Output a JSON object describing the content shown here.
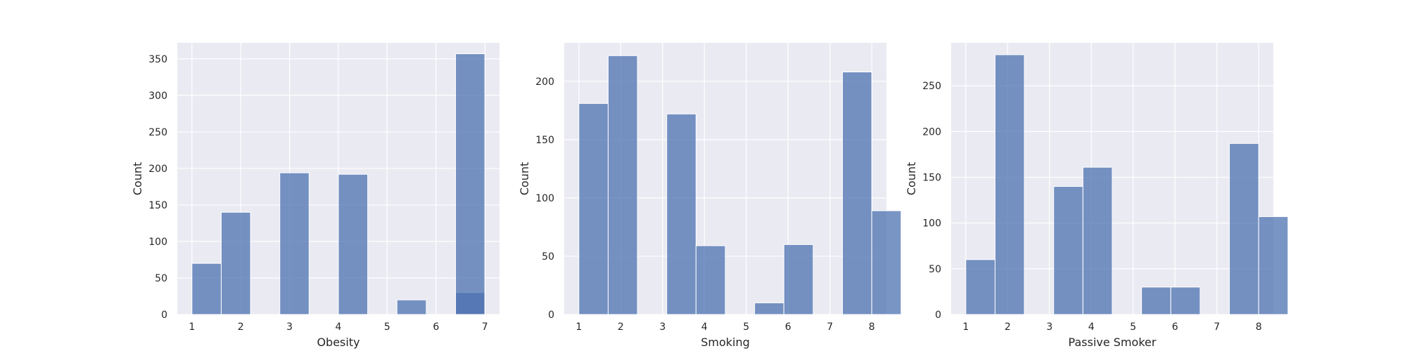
{
  "colors": {
    "background": "#ffffff",
    "plot_background": "#eaeaf2",
    "grid": "#ffffff",
    "bar_fill": "#4c72b0",
    "bar_edge": "#ffffff",
    "text": "#262626"
  },
  "chart_data": [
    {
      "type": "bar",
      "subtype": "histogram",
      "title": "",
      "xlabel": "Obesity",
      "ylabel": "Count",
      "xlim": [
        0.7,
        7.3
      ],
      "ylim": [
        0,
        372
      ],
      "xticks": [
        1,
        2,
        3,
        4,
        5,
        6,
        7
      ],
      "yticks": [
        0,
        50,
        100,
        150,
        200,
        250,
        300,
        350
      ],
      "bin_width": 0.6,
      "bins": [
        {
          "start": 1.0,
          "value": 70
        },
        {
          "start": 1.6,
          "value": 140
        },
        {
          "start": 2.2,
          "value": 0
        },
        {
          "start": 2.8,
          "value": 194
        },
        {
          "start": 3.4,
          "value": 0
        },
        {
          "start": 4.0,
          "value": 192
        },
        {
          "start": 4.6,
          "value": 0
        },
        {
          "start": 5.2,
          "value": 20
        },
        {
          "start": 5.8,
          "value": 0
        },
        {
          "start": 6.4,
          "value": 30
        },
        {
          "start": 6.4,
          "value": 357
        }
      ],
      "grid": true
    },
    {
      "type": "bar",
      "subtype": "histogram",
      "title": "",
      "xlabel": "Smoking",
      "ylabel": "Count",
      "xlim": [
        0.65,
        8.35
      ],
      "ylim": [
        0,
        233
      ],
      "xticks": [
        1,
        2,
        3,
        4,
        5,
        6,
        7,
        8
      ],
      "yticks": [
        0,
        50,
        100,
        150,
        200
      ],
      "bin_width": 0.7,
      "bins": [
        {
          "start": 1.0,
          "value": 181
        },
        {
          "start": 1.7,
          "value": 222
        },
        {
          "start": 2.4,
          "value": 0
        },
        {
          "start": 3.1,
          "value": 172
        },
        {
          "start": 3.8,
          "value": 59
        },
        {
          "start": 4.5,
          "value": 0
        },
        {
          "start": 5.2,
          "value": 10
        },
        {
          "start": 5.9,
          "value": 60
        },
        {
          "start": 6.6,
          "value": 0
        },
        {
          "start": 7.3,
          "value": 208
        },
        {
          "start": 8.0,
          "value": 89
        }
      ],
      "grid": true
    },
    {
      "type": "bar",
      "subtype": "histogram",
      "title": "",
      "xlabel": "Passive Smoker",
      "ylabel": "Count",
      "xlim": [
        0.65,
        8.35
      ],
      "ylim": [
        0,
        297
      ],
      "xticks": [
        1,
        2,
        3,
        4,
        5,
        6,
        7,
        8
      ],
      "yticks": [
        0,
        50,
        100,
        150,
        200,
        250
      ],
      "bin_width": 0.7,
      "bins": [
        {
          "start": 1.0,
          "value": 60
        },
        {
          "start": 1.7,
          "value": 284
        },
        {
          "start": 2.4,
          "value": 0
        },
        {
          "start": 3.1,
          "value": 140
        },
        {
          "start": 3.8,
          "value": 161
        },
        {
          "start": 4.5,
          "value": 0
        },
        {
          "start": 5.2,
          "value": 30
        },
        {
          "start": 5.9,
          "value": 30
        },
        {
          "start": 6.6,
          "value": 0
        },
        {
          "start": 7.3,
          "value": 187
        },
        {
          "start": 8.0,
          "value": 107
        }
      ],
      "grid": true
    }
  ]
}
